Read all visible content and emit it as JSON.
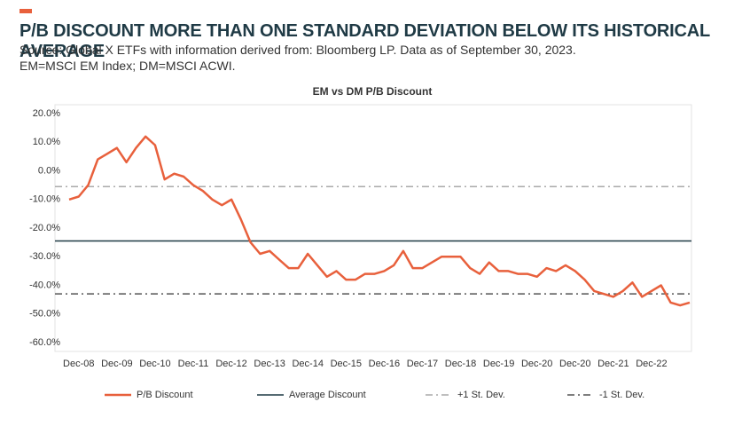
{
  "header": {
    "title": "P/B DISCOUNT MORE THAN ONE STANDARD DEVIATION BELOW ITS HISTORICAL AVERAGE",
    "source": "Source: Global X ETFs with information derived from: Bloomberg LP. Data as of September 30, 2023.",
    "note": "EM=MSCI EM Index; DM=MSCI ACWI."
  },
  "chart_data": {
    "type": "line",
    "title": "EM vs DM P/B Discount",
    "categories": [
      null,
      "Dec-08",
      null,
      null,
      null,
      "Dec-09",
      null,
      null,
      null,
      "Dec-10",
      null,
      null,
      null,
      "Dec-11",
      null,
      null,
      null,
      "Dec-12",
      null,
      null,
      null,
      "Dec-13",
      null,
      null,
      null,
      "Dec-14",
      null,
      null,
      null,
      "Dec-15",
      null,
      null,
      null,
      "Dec-16",
      null,
      null,
      null,
      "Dec-17",
      null,
      null,
      null,
      "Dec-18",
      null,
      null,
      null,
      "Dec-19",
      null,
      null,
      null,
      "Dec-20",
      null,
      null,
      null,
      "Dec-20",
      null,
      null,
      null,
      "Dec-21",
      null,
      null,
      null,
      "Dec-22",
      null,
      null,
      null,
      null
    ],
    "series": [
      {
        "name": "P/B Discount",
        "color": "#e8603c",
        "values": [
          -10,
          -9,
          -5,
          4,
          6,
          8,
          3,
          8,
          12,
          9,
          -3,
          -1,
          -2,
          -5,
          -7,
          -10,
          -12,
          -10,
          -17,
          -25,
          -29,
          -28,
          -31,
          -34,
          -34,
          -29,
          -33,
          -37,
          -35,
          -38,
          -38,
          -36,
          -36,
          -35,
          -33,
          -28,
          -34,
          -34,
          -32,
          -30,
          -30,
          -30,
          -34,
          -36,
          -32,
          -35,
          -35,
          -36,
          -36,
          -37,
          -34,
          -35,
          -33,
          -35,
          -38,
          -42,
          -43,
          -44,
          -42,
          -39,
          -44,
          -42,
          -40,
          -46,
          -47,
          -46
        ]
      }
    ],
    "reference_lines": [
      {
        "name": "Average Discount",
        "value": -24.5,
        "color": "#1f3a45",
        "style": "solid"
      },
      {
        "name": "+1 St. Dev.",
        "value": -5.5,
        "color": "#aaaaaa",
        "style": "dashdot"
      },
      {
        "name": "-1 St. Dev.",
        "value": -43,
        "color": "#555555",
        "style": "dashdot"
      }
    ],
    "ylim": [
      -60,
      20
    ],
    "yticks": [
      {
        "value": 20,
        "label": "20.0%"
      },
      {
        "value": 10,
        "label": "10.0%"
      },
      {
        "value": 0,
        "label": "0.0%"
      },
      {
        "value": -10,
        "label": "-10.0%"
      },
      {
        "value": -20,
        "label": "-20.0%"
      },
      {
        "value": -30,
        "label": "-30.0%"
      },
      {
        "value": -40,
        "label": "-40.0%"
      },
      {
        "value": -50,
        "label": "-50.0%"
      },
      {
        "value": -60,
        "label": "-60.0%"
      }
    ],
    "grid": false,
    "legend": "bottom"
  }
}
